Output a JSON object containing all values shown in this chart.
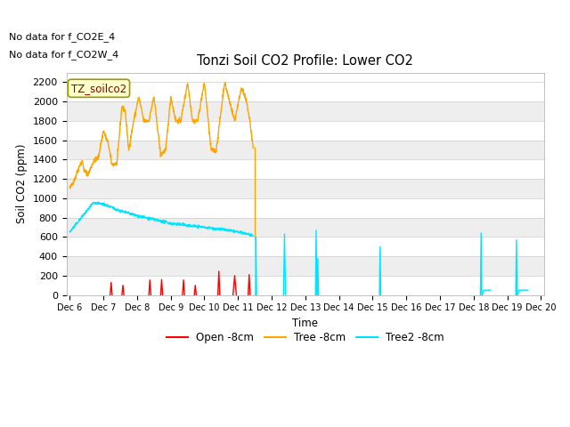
{
  "title": "Tonzi Soil CO2 Profile: Lower CO2",
  "ylabel": "Soil CO2 (ppm)",
  "xlabel": "Time",
  "no_data_text": [
    "No data for f_CO2E_4",
    "No data for f_CO2W_4"
  ],
  "legend_label_box": "TZ_soilco2",
  "ylim": [
    0,
    2300
  ],
  "xlim": [
    -0.1,
    14.1
  ],
  "fig_facecolor": "#ffffff",
  "plot_bg_bands": [
    "#ffffff",
    "#eeeeee"
  ],
  "grid_color": "#dddddd",
  "orange_color": "#ffa500",
  "cyan_color": "#00e5ff",
  "red_color": "#ff0000",
  "xtick_labels": [
    "Dec 6",
    "Dec 7",
    "Dec 8",
    "Dec 9",
    "Dec 10",
    "Dec 11",
    "Dec 12",
    "Dec 13",
    "Dec 14",
    "Dec 15",
    "Dec 16",
    "Dec 17",
    "Dec 18",
    "Dec 19",
    "Dec 20"
  ],
  "ytick_values": [
    0,
    200,
    400,
    600,
    800,
    1000,
    1200,
    1400,
    1600,
    1800,
    2000,
    2200
  ],
  "orange_keypoints": [
    [
      0.0,
      1100
    ],
    [
      0.15,
      1200
    ],
    [
      0.3,
      1350
    ],
    [
      0.38,
      1380
    ],
    [
      0.42,
      1290
    ],
    [
      0.55,
      1250
    ],
    [
      0.7,
      1380
    ],
    [
      0.85,
      1420
    ],
    [
      1.0,
      1700
    ],
    [
      1.15,
      1560
    ],
    [
      1.25,
      1350
    ],
    [
      1.4,
      1360
    ],
    [
      1.55,
      1950
    ],
    [
      1.65,
      1900
    ],
    [
      1.75,
      1500
    ],
    [
      1.9,
      1800
    ],
    [
      2.05,
      2050
    ],
    [
      2.2,
      1800
    ],
    [
      2.35,
      1800
    ],
    [
      2.5,
      2050
    ],
    [
      2.7,
      1450
    ],
    [
      2.85,
      1500
    ],
    [
      3.0,
      2050
    ],
    [
      3.15,
      1800
    ],
    [
      3.3,
      1800
    ],
    [
      3.5,
      2200
    ],
    [
      3.65,
      1800
    ],
    [
      3.8,
      1800
    ],
    [
      4.0,
      2200
    ],
    [
      4.2,
      1500
    ],
    [
      4.35,
      1490
    ],
    [
      4.6,
      2200
    ],
    [
      4.75,
      2000
    ],
    [
      4.9,
      1800
    ],
    [
      5.1,
      2150
    ],
    [
      5.25,
      2000
    ],
    [
      5.35,
      1800
    ],
    [
      5.45,
      1520
    ],
    [
      5.5,
      600
    ]
  ],
  "cyan_cont_keypoints": [
    [
      0.0,
      650
    ],
    [
      0.3,
      780
    ],
    [
      0.7,
      950
    ],
    [
      1.0,
      940
    ],
    [
      1.5,
      870
    ],
    [
      2.0,
      820
    ],
    [
      2.5,
      780
    ],
    [
      3.0,
      740
    ],
    [
      3.5,
      720
    ],
    [
      4.0,
      700
    ],
    [
      4.5,
      680
    ],
    [
      5.0,
      650
    ],
    [
      5.3,
      630
    ],
    [
      5.45,
      605
    ]
  ],
  "cyan_spikes": [
    [
      5.52,
      0,
      5.53,
      600,
      5.55,
      0
    ],
    [
      6.35,
      0,
      6.38,
      630,
      6.41,
      0
    ],
    [
      7.3,
      0,
      7.32,
      670,
      7.34,
      0
    ],
    [
      7.35,
      0,
      7.37,
      380,
      7.39,
      0
    ],
    [
      9.2,
      0,
      9.22,
      500,
      9.24,
      0
    ],
    [
      12.2,
      0,
      12.22,
      640,
      12.24,
      0
    ],
    [
      12.25,
      0,
      12.3,
      50,
      12.5,
      50
    ],
    [
      13.25,
      0,
      13.27,
      570,
      13.29,
      0
    ],
    [
      13.3,
      0,
      13.35,
      50,
      13.6,
      50
    ]
  ],
  "red_spikes": [
    [
      1.2,
      0,
      1.23,
      130,
      1.26,
      0
    ],
    [
      1.55,
      0,
      1.58,
      100,
      1.61,
      0
    ],
    [
      2.35,
      0,
      2.38,
      155,
      2.41,
      0
    ],
    [
      2.7,
      0,
      2.73,
      160,
      2.76,
      0
    ],
    [
      3.35,
      0,
      3.38,
      155,
      3.41,
      0
    ],
    [
      3.7,
      0,
      3.73,
      100,
      3.76,
      0
    ],
    [
      4.4,
      0,
      4.43,
      245,
      4.46,
      0
    ],
    [
      4.85,
      0,
      4.9,
      200,
      4.95,
      0
    ],
    [
      5.3,
      0,
      5.33,
      210,
      5.36,
      0
    ]
  ]
}
